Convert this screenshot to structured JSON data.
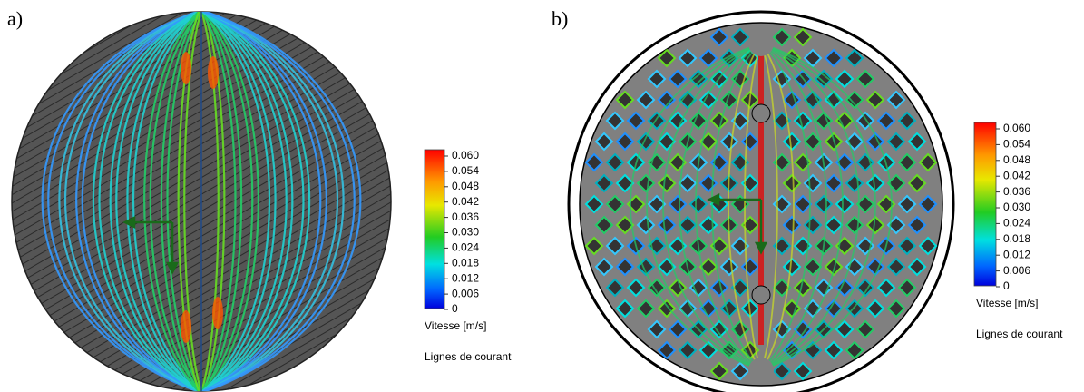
{
  "panels": [
    {
      "label": "a)",
      "colorbar": {
        "ticks": [
          "0.060",
          "0.054",
          "0.048",
          "0.042",
          "0.036",
          "0.030",
          "0.024",
          "0.018",
          "0.012",
          "0.006",
          "0"
        ],
        "title": "Vitesse [m/s]",
        "subtitle": "Lignes de courant"
      }
    },
    {
      "label": "b)",
      "colorbar": {
        "ticks": [
          "0.060",
          "0.054",
          "0.048",
          "0.042",
          "0.036",
          "0.030",
          "0.024",
          "0.018",
          "0.012",
          "0.006",
          "0"
        ],
        "title": "Vitesse [m/s]",
        "subtitle": "Lignes de courant"
      }
    }
  ]
}
